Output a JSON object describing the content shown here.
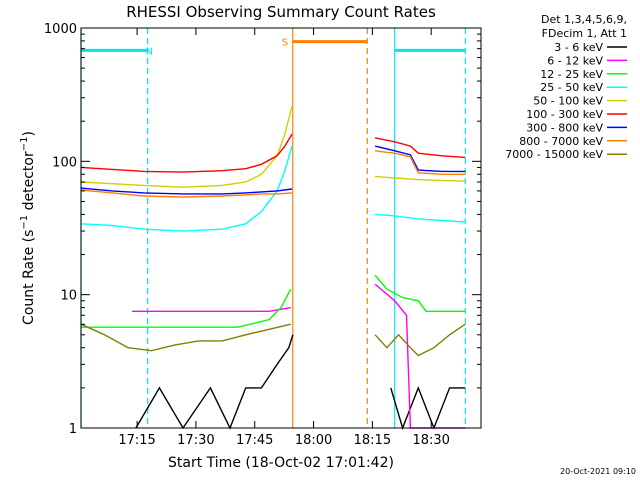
{
  "chart_data": {
    "type": "line",
    "title": "RHESSI Observing Summary Count Rates",
    "xlabel": "Start Time (18-Oct-02 17:01:42)",
    "ylabel": "Count Rate (s⁻¹ detector⁻¹)",
    "ylabel_main": "Count Rate (s",
    "ylabel_sup1": "−1",
    "ylabel_mid": " detector",
    "ylabel_sup2": "−1",
    "ylabel_end": ")",
    "yscale": "log",
    "ylim": [
      1,
      1000
    ],
    "xlim_min": [
      0,
      102
    ],
    "x_unit": "minutes after 17:01:42",
    "x_ticks": [
      {
        "t": 14.3,
        "label": "17:15"
      },
      {
        "t": 29.3,
        "label": "17:30"
      },
      {
        "t": 44.3,
        "label": "17:45"
      },
      {
        "t": 59.3,
        "label": "18:00"
      },
      {
        "t": 74.3,
        "label": "18:15"
      },
      {
        "t": 89.3,
        "label": "18:30"
      }
    ],
    "y_ticks": [
      {
        "v": 1,
        "label": "1"
      },
      {
        "v": 10,
        "label": "10"
      },
      {
        "v": 100,
        "label": "100"
      },
      {
        "v": 1000,
        "label": "1000"
      }
    ],
    "legend_header": [
      "Det 1,3,4,5,6,9,",
      "FDecim 1, Att 1"
    ],
    "legend_placement": "right",
    "timestamp": "20-Oct-2021 09:10",
    "flags": [
      {
        "label": "N",
        "color": "#00e5ee",
        "segments": [
          [
            0,
            17
          ],
          [
            80,
            98
          ]
        ],
        "level": 680
      },
      {
        "label": "S",
        "color": "#ff8000",
        "segments": [
          [
            54,
            73
          ]
        ],
        "level": 790
      }
    ],
    "markers": [
      {
        "t": 0,
        "color": "#00e5ee",
        "style": "solid"
      },
      {
        "t": 17,
        "color": "#00e5ee",
        "style": "dashed"
      },
      {
        "t": 54,
        "color": "#ff8000",
        "style": "solid"
      },
      {
        "t": 73,
        "color": "#ff8000",
        "style": "dashed"
      },
      {
        "t": 80,
        "color": "#00e5ee",
        "style": "solid"
      },
      {
        "t": 98,
        "color": "#00e5ee",
        "style": "dashed"
      }
    ],
    "series": [
      {
        "name": "3 - 6 keV",
        "color": "#000000",
        "segments": [
          {
            "x": [
              14,
              20,
              26,
              33,
              38,
              42,
              46,
              50,
              53,
              54
            ],
            "y": [
              1,
              2,
              1,
              2,
              1,
              2,
              2,
              3,
              4,
              5
            ]
          },
          {
            "x": [
              79,
              82,
              86,
              90,
              94,
              98
            ],
            "y": [
              2,
              1,
              2,
              1,
              2,
              2
            ]
          }
        ]
      },
      {
        "name": "6 - 12 keV",
        "color": "#ff00ff",
        "segments": [
          {
            "x": [
              13,
              20,
              30,
              40,
              48,
              53.5
            ],
            "y": [
              7.5,
              7.5,
              7.5,
              7.5,
              7.5,
              8
            ]
          },
          {
            "x": [
              75,
              80,
              83,
              84,
              90,
              98
            ],
            "y": [
              12,
              9,
              7,
              1,
              1,
              1
            ]
          }
        ]
      },
      {
        "name": "12 - 25 keV",
        "color": "#00ff00",
        "segments": [
          {
            "x": [
              0,
              10,
              20,
              30,
              40,
              48,
              51,
              53.5
            ],
            "y": [
              5.7,
              5.7,
              5.7,
              5.7,
              5.7,
              6.5,
              8,
              11
            ]
          },
          {
            "x": [
              75,
              78,
              82,
              86,
              88,
              92,
              98
            ],
            "y": [
              14,
              11,
              9.5,
              9,
              7.5,
              7.5,
              7.5
            ]
          }
        ]
      },
      {
        "name": "25 - 50 keV",
        "color": "#00ffff",
        "segments": [
          {
            "x": [
              0,
              8,
              16,
              26,
              36,
              42,
              46,
              50,
              52,
              53.8
            ],
            "y": [
              34,
              33,
              31,
              30,
              31,
              34,
              42,
              60,
              85,
              130
            ]
          },
          {
            "x": [
              75,
              80,
              86,
              92,
              98
            ],
            "y": [
              40,
              39,
              37,
              36,
              35
            ]
          }
        ]
      },
      {
        "name": "50 - 100 keV",
        "color": "#d0d000",
        "segments": [
          {
            "x": [
              0,
              8,
              16,
              26,
              36,
              42,
              46,
              50,
              52,
              53.8
            ],
            "y": [
              70,
              68,
              66,
              64,
              66,
              70,
              80,
              110,
              160,
              260
            ]
          },
          {
            "x": [
              75,
              80,
              86,
              92,
              98
            ],
            "y": [
              77,
              75,
              73,
              72,
              71
            ]
          }
        ]
      },
      {
        "name": "100 - 300 keV",
        "color": "#ff0000",
        "segments": [
          {
            "x": [
              0,
              8,
              16,
              26,
              36,
              42,
              46,
              50,
              52,
              53.8
            ],
            "y": [
              90,
              87,
              84,
              83,
              85,
              88,
              95,
              110,
              130,
              160
            ]
          },
          {
            "x": [
              75,
              80,
              84,
              86,
              92,
              98
            ],
            "y": [
              150,
              140,
              130,
              115,
              110,
              107
            ]
          }
        ]
      },
      {
        "name": "300 - 800 keV",
        "color": "#0000ff",
        "segments": [
          {
            "x": [
              0,
              8,
              16,
              26,
              36,
              42,
              46,
              50,
              53.8
            ],
            "y": [
              63,
              60,
              58,
              57,
              57,
              58,
              59,
              60,
              62
            ]
          },
          {
            "x": [
              75,
              80,
              84,
              86,
              92,
              98
            ],
            "y": [
              130,
              120,
              112,
              86,
              84,
              84
            ]
          }
        ]
      },
      {
        "name": "800 - 7000 keV",
        "color": "#ff8000",
        "segments": [
          {
            "x": [
              0,
              8,
              16,
              26,
              36,
              42,
              46,
              50,
              53.8
            ],
            "y": [
              61,
              58,
              55,
              54,
              55,
              56,
              57,
              57,
              58
            ]
          },
          {
            "x": [
              75,
              80,
              84,
              86,
              92,
              98
            ],
            "y": [
              120,
              115,
              108,
              82,
              80,
              80
            ]
          }
        ]
      },
      {
        "name": "7000 - 15000 keV",
        "color": "#808000",
        "segments": [
          {
            "x": [
              0,
              6,
              12,
              18,
              24,
              30,
              36,
              42,
              48,
              53.5
            ],
            "y": [
              6,
              5,
              4,
              3.8,
              4.2,
              4.5,
              4.5,
              5,
              5.5,
              6
            ]
          },
          {
            "x": [
              75,
              78,
              81,
              84,
              86,
              90,
              94,
              98
            ],
            "y": [
              5,
              4,
              5,
              4,
              3.5,
              4,
              5,
              6
            ]
          }
        ]
      }
    ]
  }
}
